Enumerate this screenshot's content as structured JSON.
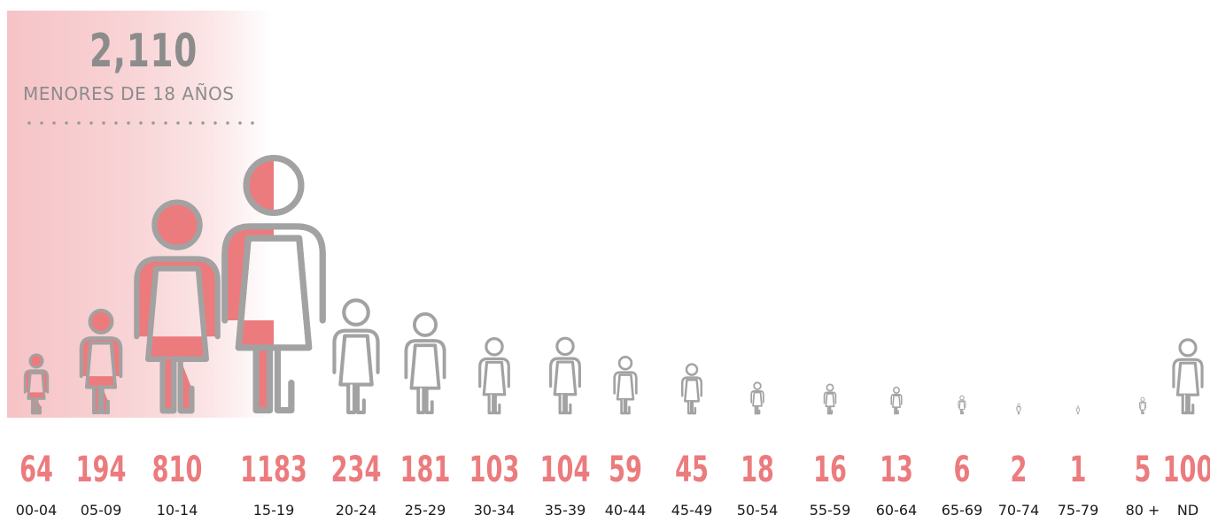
{
  "summary": {
    "value": "2,110",
    "label": "MENORES DE 18 AÑOS"
  },
  "colors": {
    "minor_fill": "#ec7b7e",
    "outline": "#a2a2a2",
    "adult_fill": "#ffffff",
    "value_text": "#ec7b7e",
    "highlight": "#f6c3c6"
  },
  "chart_data": {
    "type": "bar",
    "categories": [
      "00-04",
      "05-09",
      "10-14",
      "15-19",
      "20-24",
      "25-29",
      "30-34",
      "35-39",
      "40-44",
      "45-49",
      "50-54",
      "55-59",
      "60-64",
      "65-69",
      "70-74",
      "75-79",
      "80 +",
      "ND"
    ],
    "values": [
      64,
      194,
      810,
      1183,
      234,
      181,
      103,
      104,
      59,
      45,
      18,
      16,
      13,
      6,
      2,
      1,
      5,
      100
    ],
    "title": "",
    "xlabel": "",
    "ylabel": "",
    "highlighted_categories": [
      "00-04",
      "05-09",
      "10-14"
    ],
    "partially_highlighted_categories": [
      "15-19"
    ]
  }
}
